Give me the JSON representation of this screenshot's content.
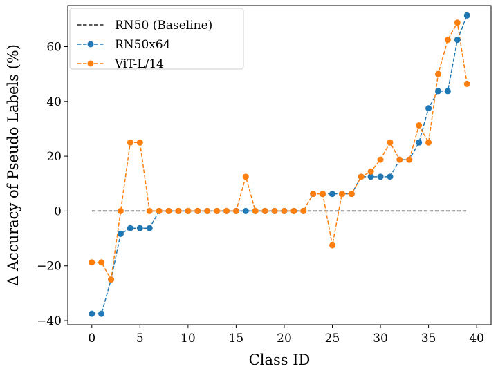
{
  "chart_data": {
    "type": "line",
    "title": "",
    "xlabel": "Class ID",
    "ylabel": "Δ Accuracy of Pseudo Labels (%)",
    "xlim": [
      -2.5,
      41.5
    ],
    "ylim": [
      -41.5,
      75
    ],
    "xticks": [
      0,
      5,
      10,
      15,
      20,
      25,
      30,
      35,
      40
    ],
    "yticks": [
      -40,
      -20,
      0,
      20,
      40,
      60
    ],
    "grid": false,
    "legend_placement": "top-left",
    "x": [
      0,
      1,
      2,
      3,
      4,
      5,
      6,
      7,
      8,
      9,
      10,
      11,
      12,
      13,
      14,
      15,
      16,
      17,
      18,
      19,
      20,
      21,
      22,
      23,
      24,
      25,
      26,
      27,
      28,
      29,
      30,
      31,
      32,
      33,
      34,
      35,
      36,
      37,
      38,
      39
    ],
    "series": [
      {
        "name": "RN50 (Baseline)",
        "color": "#222222",
        "marker": false,
        "values": [
          0,
          0,
          0,
          0,
          0,
          0,
          0,
          0,
          0,
          0,
          0,
          0,
          0,
          0,
          0,
          0,
          0,
          0,
          0,
          0,
          0,
          0,
          0,
          0,
          0,
          0,
          0,
          0,
          0,
          0,
          0,
          0,
          0,
          0,
          0,
          0,
          0,
          0,
          0,
          0
        ]
      },
      {
        "name": "RN50x64",
        "color": "#1f77b4",
        "marker": true,
        "values": [
          -37.5,
          -37.5,
          -25,
          -8.3,
          -6.25,
          -6.25,
          -6.25,
          0,
          0,
          0,
          0,
          0,
          0,
          0,
          0,
          0,
          0,
          0,
          0,
          0,
          0,
          0,
          0,
          6.25,
          6.25,
          6.25,
          6.25,
          6.25,
          12.5,
          12.5,
          12.5,
          12.5,
          18.75,
          18.75,
          25,
          37.5,
          43.75,
          43.75,
          62.5,
          71.4
        ]
      },
      {
        "name": "ViT-L/14",
        "color": "#ff7f0e",
        "marker": true,
        "values": [
          -18.75,
          -18.75,
          -25,
          0,
          25,
          25,
          0,
          0,
          0,
          0,
          0,
          0,
          0,
          0,
          0,
          0,
          12.5,
          0,
          0,
          0,
          0,
          0,
          0,
          6.25,
          6.25,
          -12.5,
          6.25,
          6.25,
          12.5,
          14.4,
          18.75,
          25,
          18.75,
          18.75,
          31.25,
          25,
          50,
          62.5,
          68.75,
          46.4
        ]
      }
    ]
  }
}
